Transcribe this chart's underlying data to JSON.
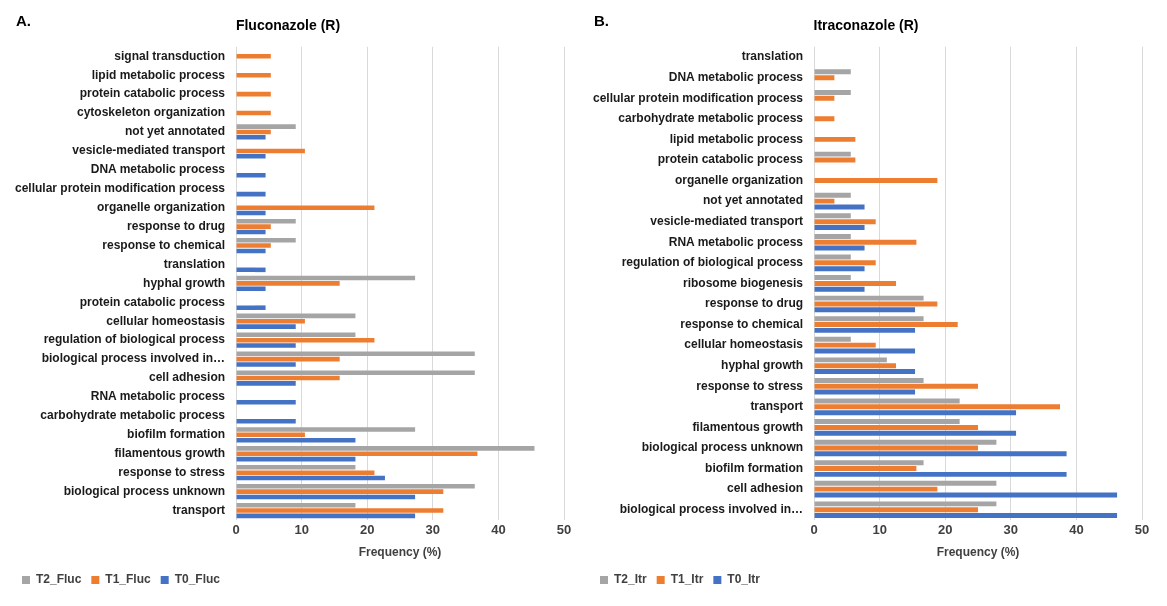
{
  "chart_data": [
    {
      "type": "bar",
      "orientation": "horizontal",
      "title": "Fluconazole (R)",
      "xlabel": "Frequency (%)",
      "annotations": [
        "A."
      ],
      "categories": [
        "signal transduction",
        "lipid metabolic process",
        "protein catabolic process",
        "cytoskeleton organization",
        "not yet annotated",
        "vesicle-mediated transport",
        "DNA metabolic process",
        "cellular protein modification process",
        "organelle organization",
        "response to drug",
        "response to chemical",
        "translation",
        "hyphal growth",
        "protein catabolic process",
        "cellular homeostasis",
        "regulation of biological process",
        "biological process involved in…",
        "cell adhesion",
        "RNA metabolic process",
        "carbohydrate metabolic process",
        "biofilm formation",
        "filamentous growth",
        "response to stress",
        "biological process unknown",
        "transport"
      ],
      "series": [
        {
          "name": "T2_Fluc",
          "color": "#a5a5a5",
          "values": [
            null,
            null,
            null,
            null,
            9.1,
            null,
            null,
            null,
            null,
            9.1,
            9.1,
            null,
            27.3,
            null,
            18.2,
            18.2,
            36.4,
            36.4,
            null,
            null,
            27.3,
            45.5,
            18.2,
            36.4,
            18.2
          ]
        },
        {
          "name": "T1_Fluc",
          "color": "#ed7d31",
          "values": [
            5.3,
            5.3,
            5.3,
            5.3,
            5.3,
            10.5,
            null,
            null,
            21.1,
            5.3,
            5.3,
            null,
            15.8,
            null,
            10.5,
            21.1,
            15.8,
            15.8,
            null,
            null,
            10.5,
            36.8,
            21.1,
            31.6,
            31.6
          ]
        },
        {
          "name": "T0_Fluc",
          "color": "#4472c4",
          "values": [
            null,
            null,
            null,
            null,
            4.5,
            4.5,
            4.5,
            4.5,
            4.5,
            4.5,
            4.5,
            4.5,
            4.5,
            4.5,
            9.1,
            9.1,
            9.1,
            9.1,
            9.1,
            9.1,
            18.2,
            18.2,
            22.7,
            27.3,
            27.3
          ]
        }
      ],
      "xlim": [
        0,
        50
      ],
      "xticks": [
        0,
        10,
        20,
        30,
        40,
        50
      ],
      "grid": "x",
      "legend": "bottom left"
    },
    {
      "type": "bar",
      "orientation": "horizontal",
      "title": "Itraconazole (R)",
      "xlabel": "Frequency (%)",
      "annotations": [
        "B."
      ],
      "categories": [
        "translation",
        "DNA metabolic process",
        "cellular protein modification process",
        "carbohydrate metabolic process",
        "lipid metabolic process",
        "protein catabolic process",
        "organelle organization",
        "not yet annotated",
        "vesicle-mediated transport",
        "RNA metabolic process",
        "regulation of biological process",
        "ribosome biogenesis",
        "response to drug",
        "response to chemical",
        "cellular homeostasis",
        "hyphal growth",
        "response to stress",
        "transport",
        "filamentous growth",
        "biological process unknown",
        "biofilm formation",
        "cell adhesion",
        "biological process involved in…"
      ],
      "series": [
        {
          "name": "T2_Itr",
          "color": "#a5a5a5",
          "values": [
            null,
            5.6,
            5.6,
            null,
            null,
            5.6,
            null,
            5.6,
            5.6,
            5.6,
            5.6,
            5.6,
            16.7,
            16.7,
            5.6,
            11.1,
            16.7,
            22.2,
            22.2,
            27.8,
            16.7,
            27.8,
            27.8
          ]
        },
        {
          "name": "T1_Itr",
          "color": "#ed7d31",
          "values": [
            null,
            3.1,
            3.1,
            3.1,
            6.3,
            6.3,
            18.8,
            3.1,
            9.4,
            15.6,
            9.4,
            12.5,
            18.8,
            21.9,
            9.4,
            12.5,
            25,
            37.5,
            25,
            25,
            15.6,
            18.8,
            25
          ]
        },
        {
          "name": "T0_Itr",
          "color": "#4472c4",
          "values": [
            null,
            null,
            null,
            null,
            null,
            null,
            null,
            7.7,
            7.7,
            7.7,
            7.7,
            7.7,
            15.4,
            15.4,
            15.4,
            15.4,
            15.4,
            30.8,
            30.8,
            38.5,
            38.5,
            46.2,
            46.2
          ]
        }
      ],
      "xlim": [
        0,
        50
      ],
      "xticks": [
        0,
        10,
        20,
        30,
        40,
        50
      ],
      "grid": "x",
      "legend": "bottom left"
    }
  ]
}
